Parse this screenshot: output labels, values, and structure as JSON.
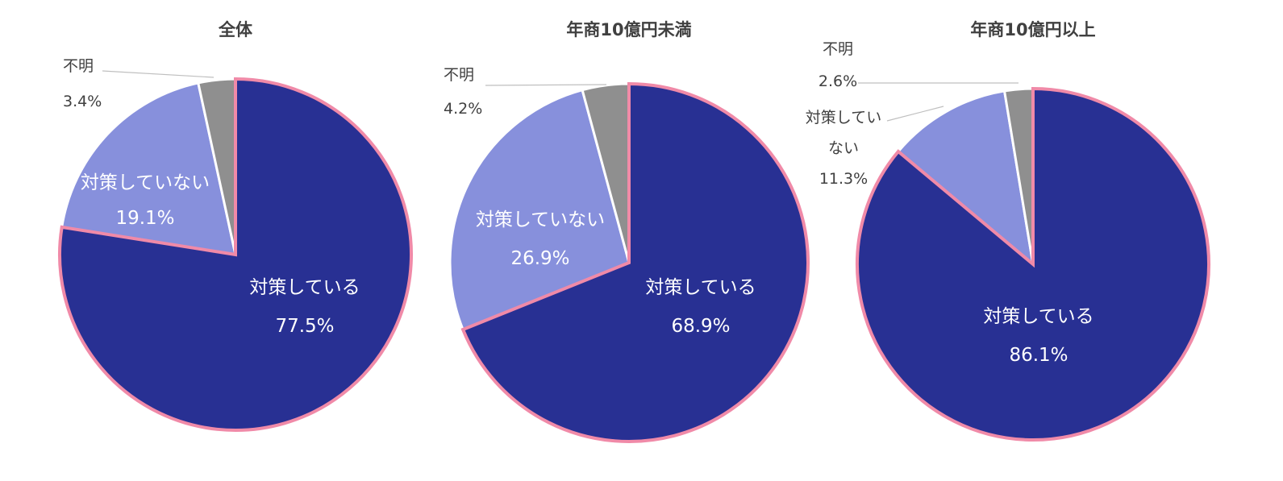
{
  "colors": {
    "implemented": "#283093",
    "not_implemented": "#8790DC",
    "unknown": "#8F8F8F",
    "highlight_border": "#F08AA8",
    "separator": "#FFFFFF",
    "leader_line": "#BFBFBF",
    "title_text": "#404040",
    "outside_label_text": "#404040"
  },
  "chart_data": [
    {
      "type": "pie",
      "title": "全体",
      "highlighted_slice": 0,
      "slices": [
        {
          "name": "対策している",
          "value": 77.5,
          "label": "77.5%",
          "color": "#283093"
        },
        {
          "name": "対策していない",
          "value": 19.1,
          "label": "19.1%",
          "color": "#8790DC"
        },
        {
          "name": "不明",
          "value": 3.4,
          "label": "3.4%",
          "color": "#8F8F8F"
        }
      ]
    },
    {
      "type": "pie",
      "title": "年商10億円未満",
      "highlighted_slice": 0,
      "slices": [
        {
          "name": "対策している",
          "value": 68.9,
          "label": "68.9%",
          "color": "#283093"
        },
        {
          "name": "対策していない",
          "value": 26.9,
          "label": "26.9%",
          "color": "#8790DC"
        },
        {
          "name": "不明",
          "value": 4.2,
          "label": "4.2%",
          "color": "#8F8F8F"
        }
      ]
    },
    {
      "type": "pie",
      "title": "年商10億円以上",
      "highlighted_slice": 0,
      "slices": [
        {
          "name": "対策している",
          "value": 86.1,
          "label": "86.1%",
          "color": "#283093"
        },
        {
          "name": "対策してい\nない",
          "value": 11.3,
          "label": "11.3%",
          "color": "#8790DC"
        },
        {
          "name": "不明",
          "value": 2.6,
          "label": "2.6%",
          "color": "#8F8F8F"
        }
      ]
    }
  ]
}
